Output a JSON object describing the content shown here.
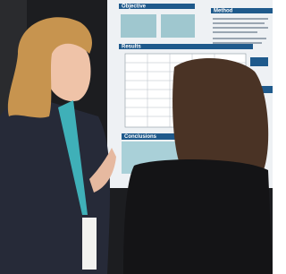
{
  "poster": {
    "sections": [
      "Objective",
      "Method",
      "Results",
      "Conclusions"
    ]
  }
}
